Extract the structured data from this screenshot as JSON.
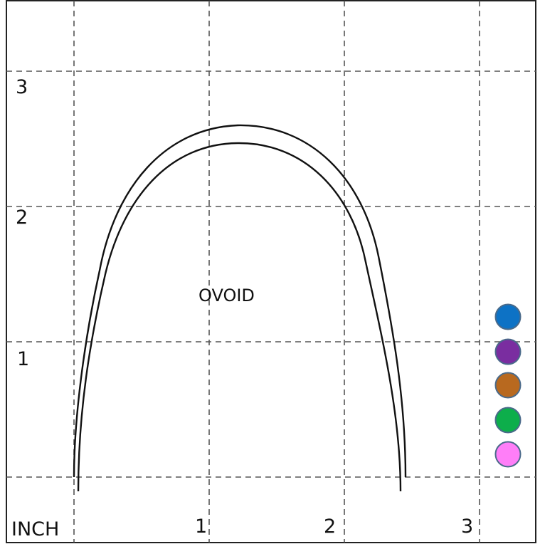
{
  "grid": {
    "x_labels": [
      "1",
      "2",
      "3"
    ],
    "y_labels": [
      "1",
      "2",
      "3"
    ],
    "unit_label": "INCH",
    "line_color": "#555555"
  },
  "arch": {
    "label": "OVOID",
    "stroke_color": "#111111"
  },
  "swatches": [
    {
      "name": "blue",
      "color": "#0D72C5"
    },
    {
      "name": "purple",
      "color": "#7A2DA0"
    },
    {
      "name": "brown",
      "color": "#B8691F"
    },
    {
      "name": "green",
      "color": "#0DAE4B"
    },
    {
      "name": "pink",
      "color": "#FF7EF8"
    }
  ]
}
